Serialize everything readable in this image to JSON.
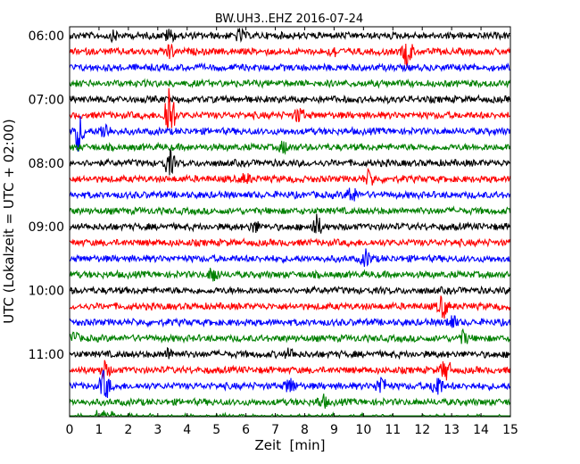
{
  "chart_data": {
    "type": "line",
    "title": "BW.UH3..EHZ 2016-07-24",
    "xlabel": "Zeit  [min]",
    "ylabel": "UTC (Lokalzeit = UTC + 02:00)",
    "xlim": [
      0,
      15
    ],
    "x_ticks": [
      "0",
      "1",
      "2",
      "3",
      "4",
      "5",
      "6",
      "7",
      "8",
      "9",
      "10",
      "11",
      "12",
      "13",
      "14",
      "15"
    ],
    "y_ticks": [
      "06:00",
      "07:00",
      "08:00",
      "09:00",
      "10:00",
      "11:00"
    ],
    "trace_interval_min": 15,
    "start_time": "06:00",
    "trace_count": 24,
    "colors": [
      "#000000",
      "#ff0000",
      "#0000ff",
      "#008000"
    ],
    "grid": false,
    "legend": "none"
  }
}
